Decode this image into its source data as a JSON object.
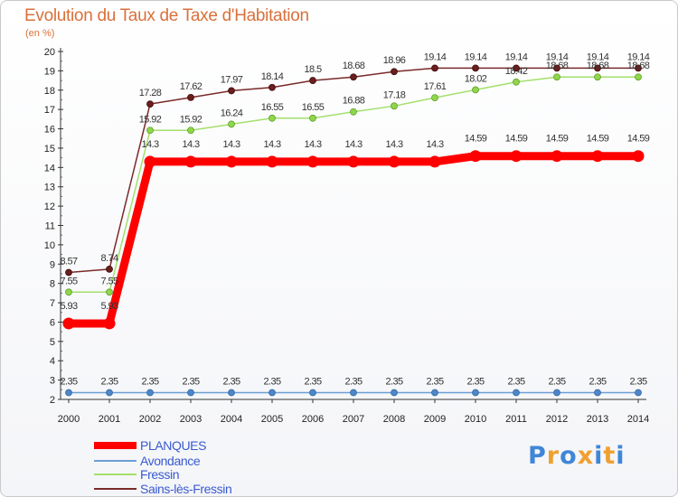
{
  "chart_data": {
    "type": "line",
    "title": "Evolution du Taux de Taxe d'Habitation",
    "unit_label": "(en %)",
    "xlabel": "",
    "ylabel": "",
    "ylim": [
      2,
      20
    ],
    "yticks": [
      2,
      3,
      4,
      5,
      6,
      7,
      8,
      9,
      10,
      11,
      12,
      13,
      14,
      15,
      16,
      17,
      18,
      19,
      20
    ],
    "x": [
      "2000",
      "2001",
      "2002",
      "2003",
      "2004",
      "2005",
      "2006",
      "2007",
      "2008",
      "2009",
      "2010",
      "2011",
      "2012",
      "2013",
      "2014"
    ],
    "series": [
      {
        "name": "Sains-lès-Fressin",
        "color": "#7a2a2a",
        "values": [
          8.57,
          8.74,
          17.28,
          17.62,
          17.97,
          18.14,
          18.5,
          18.68,
          18.96,
          19.14,
          19.14,
          19.14,
          19.14,
          19.14,
          19.14
        ],
        "labels": [
          "8.57",
          "8.74",
          "17.28",
          "17.62",
          "17.97",
          "18.14",
          "18.5",
          "18.68",
          "18.96",
          "19.14",
          "19.14",
          "19.14",
          "19.14",
          "19.14",
          "19.14"
        ]
      },
      {
        "name": "Fressin",
        "color": "#99dd55",
        "values": [
          7.55,
          7.55,
          15.92,
          15.92,
          16.24,
          16.55,
          16.55,
          16.88,
          17.18,
          17.61,
          18.02,
          18.42,
          18.68,
          18.68,
          18.68
        ],
        "labels": [
          "7.55",
          "7.55",
          "15.92",
          "15.92",
          "16.24",
          "16.55",
          "16.55",
          "16.88",
          "17.18",
          "17.61",
          "18.02",
          "18.42",
          "18.68",
          "18.68",
          "18.68"
        ]
      },
      {
        "name": "PLANQUES",
        "color": "#ff0000",
        "values": [
          5.93,
          5.93,
          14.3,
          14.3,
          14.3,
          14.3,
          14.3,
          14.3,
          14.3,
          14.3,
          14.59,
          14.59,
          14.59,
          14.59,
          14.59
        ],
        "labels": [
          "5.93",
          "5.93",
          "14.3",
          "14.3",
          "14.3",
          "14.3",
          "14.3",
          "14.3",
          "14.3",
          "14.3",
          "14.59",
          "14.59",
          "14.59",
          "14.59",
          "14.59"
        ]
      },
      {
        "name": "Avondance",
        "color": "#6699cc",
        "values": [
          2.35,
          2.35,
          2.35,
          2.35,
          2.35,
          2.35,
          2.35,
          2.35,
          2.35,
          2.35,
          2.35,
          2.35,
          2.35,
          2.35,
          2.35
        ],
        "labels": [
          "2.35",
          "2.35",
          "2.35",
          "2.35",
          "2.35",
          "2.35",
          "2.35",
          "2.35",
          "2.35",
          "2.35",
          "2.35",
          "2.35",
          "2.35",
          "2.35",
          "2.35"
        ]
      }
    ],
    "legend": [
      "PLANQUES",
      "Avondance",
      "Fressin",
      "Sains-lès-Fressin"
    ],
    "legend_position": "bottom-left",
    "grid": false
  },
  "brand": {
    "text": "Proxiti",
    "letters": [
      "P",
      "r",
      "o",
      "x",
      "i",
      "t",
      "i"
    ],
    "colors": [
      "#3f86d9",
      "#f0a030",
      "#3f86d9",
      "#f0a030",
      "#3f86d9",
      "#f0a030",
      "#3f86d9"
    ]
  }
}
